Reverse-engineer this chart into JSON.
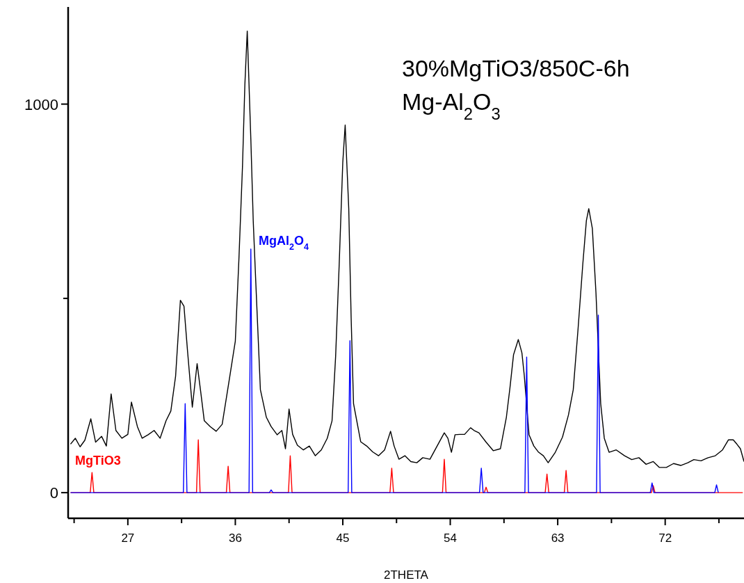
{
  "chart_data": {
    "type": "line",
    "title": "30%MgTiO3/850C-6h",
    "subtitle": "Mg-Al$_{2}$O$_{3}$",
    "xlabel": "2THETA",
    "xlim": [
      22,
      78.6
    ],
    "ylim": [
      -66,
      1250
    ],
    "xticks": [
      {
        "value": 22.5,
        "label": null
      },
      27,
      {
        "value": 31.5,
        "label": null
      },
      36,
      {
        "value": 40.5,
        "label": null
      },
      45,
      {
        "value": 49.5,
        "label": null
      },
      54,
      {
        "value": 58.5,
        "label": null
      },
      63,
      {
        "value": 67.5,
        "label": null
      },
      72,
      {
        "value": 76.5,
        "label": null
      }
    ],
    "yticks": [
      0,
      {
        "value": 500,
        "label": null
      },
      1000
    ],
    "grid": false,
    "line_style": "solid",
    "marker": "none",
    "series": [
      {
        "color": "#000000",
        "x": [
          22.2,
          22.6,
          23.0,
          23.4,
          23.9,
          24.3,
          24.8,
          25.2,
          25.6,
          26.0,
          26.5,
          27.0,
          27.3,
          27.8,
          28.2,
          28.7,
          29.2,
          29.7,
          30.2,
          30.6,
          31.0,
          31.4,
          31.7,
          32.0,
          32.4,
          32.8,
          33.1,
          33.4,
          33.9,
          34.4,
          34.9,
          35.5,
          36.0,
          36.3,
          36.6,
          36.8,
          37.0,
          37.3,
          37.5,
          37.7,
          38.1,
          38.6,
          39.0,
          39.5,
          39.9,
          40.2,
          40.5,
          40.8,
          41.2,
          41.7,
          42.2,
          42.7,
          43.2,
          43.7,
          44.1,
          44.4,
          44.7,
          45.0,
          45.2,
          45.5,
          45.7,
          45.9,
          46.5,
          47.0,
          47.5,
          48.0,
          48.5,
          49.0,
          49.3,
          49.7,
          50.2,
          50.7,
          51.2,
          51.7,
          52.3,
          52.9,
          53.5,
          53.8,
          54.1,
          54.4,
          54.8,
          55.2,
          55.7,
          56.0,
          56.4,
          57.0,
          57.6,
          58.2,
          58.7,
          59.0,
          59.3,
          59.7,
          60.0,
          60.2,
          60.6,
          61.0,
          61.4,
          61.8,
          62.2,
          62.8,
          63.4,
          63.9,
          64.3,
          64.7,
          65.1,
          65.4,
          65.6,
          65.9,
          66.2,
          66.6,
          66.9,
          67.3,
          67.9,
          68.6,
          69.2,
          69.8,
          70.4,
          71.0,
          71.5,
          72.1,
          72.7,
          73.3,
          73.9,
          74.4,
          75.0,
          75.6,
          76.2,
          76.8,
          77.3,
          77.7,
          78.0,
          78.3,
          78.6
        ],
        "values": [
          125,
          140,
          118,
          135,
          190,
          130,
          145,
          120,
          254,
          160,
          140,
          150,
          233,
          170,
          140,
          149,
          160,
          140,
          185,
          210,
          300,
          495,
          480,
          364,
          220,
          332,
          260,
          185,
          170,
          158,
          176,
          292,
          390,
          600,
          839,
          1050,
          1188,
          910,
          700,
          552,
          265,
          194,
          170,
          149,
          160,
          113,
          215,
          150,
          122,
          110,
          120,
          95,
          110,
          140,
          185,
          350,
          588,
          850,
          946,
          731,
          450,
          229,
          131,
          120,
          105,
          95,
          110,
          158,
          120,
          86,
          95,
          80,
          77,
          90,
          86,
          120,
          154,
          140,
          104,
          149,
          150,
          150,
          167,
          160,
          154,
          130,
          108,
          113,
          194,
          270,
          355,
          394,
          360,
          301,
          149,
          120,
          104,
          95,
          77,
          104,
          143,
          200,
          265,
          420,
          588,
          700,
          731,
          680,
          516,
          229,
          140,
          104,
          110,
          95,
          85,
          90,
          73,
          80,
          65,
          65,
          75,
          70,
          77,
          85,
          82,
          90,
          95,
          110,
          136,
          136,
          125,
          113,
          80
        ]
      },
      {
        "name": "MgTiO3",
        "color": "#ff0000",
        "x": [
          22.2,
          23.85,
          24.0,
          24.15,
          32.75,
          32.9,
          33.05,
          35.25,
          35.4,
          35.55,
          40.45,
          40.6,
          40.75,
          48.95,
          49.1,
          49.25,
          53.35,
          53.5,
          53.65,
          56.85,
          57.0,
          57.15,
          61.95,
          62.1,
          62.25,
          63.55,
          63.7,
          63.85,
          70.85,
          71.0,
          71.15,
          78.5
        ],
        "values": [
          0,
          0,
          52,
          0,
          0,
          136,
          0,
          0,
          68,
          0,
          0,
          95,
          0,
          0,
          63,
          0,
          0,
          86,
          0,
          0,
          14,
          0,
          0,
          48,
          0,
          0,
          57,
          0,
          0,
          18,
          0,
          0
        ]
      },
      {
        "name": "MgAl$_{2}$O$_{4}$",
        "color": "#0000ff",
        "x": [
          22.2,
          31.65,
          31.8,
          31.95,
          37.15,
          37.3,
          37.45,
          38.85,
          39.0,
          39.15,
          45.45,
          45.6,
          45.75,
          56.45,
          56.6,
          56.75,
          60.25,
          60.4,
          60.55,
          66.25,
          66.4,
          66.55,
          70.75,
          70.9,
          71.05,
          76.15,
          76.3,
          76.45
        ],
        "values": [
          0,
          0,
          229,
          0,
          0,
          627,
          0,
          0,
          7,
          0,
          0,
          391,
          0,
          0,
          63,
          0,
          0,
          349,
          0,
          0,
          457,
          0,
          0,
          25,
          0,
          0,
          20,
          0
        ]
      }
    ]
  }
}
